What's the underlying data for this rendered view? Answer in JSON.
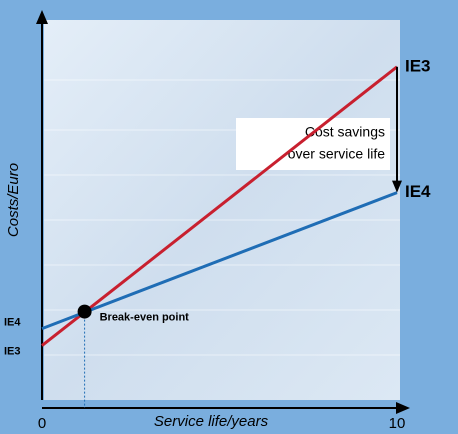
{
  "chart_data": {
    "type": "line",
    "x_label": "Service life/years",
    "y_label": "Costs/Euro",
    "x": [
      0,
      10
    ],
    "series": [
      {
        "name": "IE3",
        "color": "#c8202f",
        "values": [
          16,
          98
        ]
      },
      {
        "name": "IE4",
        "color": "#1f6db5",
        "values": [
          21,
          61
        ]
      }
    ],
    "xlim": [
      0,
      10
    ],
    "xticks": [
      0,
      10
    ],
    "ylim": [
      0,
      100
    ],
    "break_even": {
      "label": "Break-even point",
      "x": 1.2,
      "y": 26
    },
    "annotation": [
      "Cost savings",
      "over service life"
    ]
  }
}
